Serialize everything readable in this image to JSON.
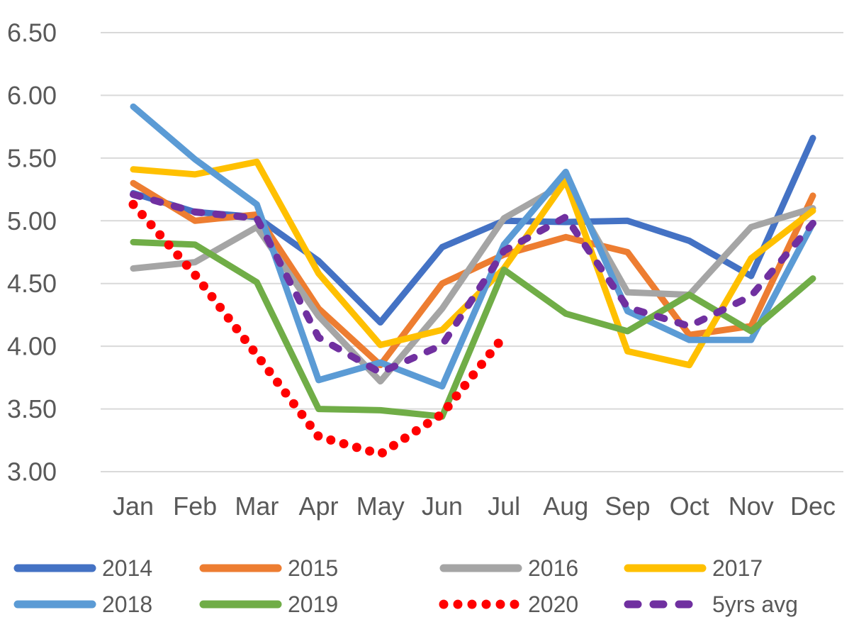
{
  "colors": {
    "background": "#FFFFFF",
    "gridline": "#D9D9D9",
    "axis_text": "#595959"
  },
  "chart_data": {
    "type": "line",
    "title": "",
    "xlabel": "",
    "ylabel": "",
    "categories": [
      "Jan",
      "Feb",
      "Mar",
      "Apr",
      "May",
      "Jun",
      "Jul",
      "Aug",
      "Sep",
      "Oct",
      "Nov",
      "Dec"
    ],
    "y_ticks": [
      "6.50",
      "6.00",
      "5.50",
      "5.00",
      "4.50",
      "4.00",
      "3.50",
      "3.00"
    ],
    "ylim": [
      3.0,
      6.5
    ],
    "grid": "horizontal",
    "legend_position": "bottom",
    "legend_rows": 2,
    "legend_columns": 4,
    "series": [
      {
        "name": "2014",
        "color": "#4472C4",
        "style": "solid",
        "values": [
          5.22,
          5.07,
          5.03,
          4.68,
          4.19,
          4.79,
          5.0,
          4.99,
          5.0,
          4.84,
          4.56,
          5.66
        ]
      },
      {
        "name": "2015",
        "color": "#ED7D31",
        "style": "solid",
        "values": [
          5.3,
          5.0,
          5.05,
          4.3,
          3.85,
          4.5,
          4.73,
          4.87,
          4.75,
          4.09,
          4.16,
          5.2
        ]
      },
      {
        "name": "2016",
        "color": "#A5A5A5",
        "style": "solid",
        "values": [
          4.62,
          4.67,
          4.95,
          4.24,
          3.72,
          4.3,
          5.02,
          5.3,
          4.43,
          4.41,
          4.95,
          5.1
        ]
      },
      {
        "name": "2017",
        "color": "#FFC000",
        "style": "solid",
        "values": [
          5.41,
          5.37,
          5.47,
          4.58,
          4.01,
          4.13,
          4.62,
          5.32,
          3.96,
          3.85,
          4.7,
          5.08
        ]
      },
      {
        "name": "2018",
        "color": "#5B9BD5",
        "style": "solid",
        "values": [
          5.91,
          5.49,
          5.13,
          3.73,
          3.87,
          3.68,
          4.81,
          5.39,
          4.28,
          4.05,
          4.05,
          4.98
        ]
      },
      {
        "name": "2019",
        "color": "#70AD47",
        "style": "solid",
        "values": [
          4.83,
          4.81,
          4.51,
          3.5,
          3.49,
          3.44,
          4.61,
          4.26,
          4.12,
          4.41,
          4.12,
          4.54
        ]
      },
      {
        "name": "2020",
        "color": "#FF0000",
        "style": "dotted",
        "values": [
          5.13,
          4.57,
          3.93,
          3.28,
          3.14,
          3.46,
          4.08
        ]
      },
      {
        "name": "5yrs avg",
        "color": "#7030A0",
        "style": "dashed",
        "values": [
          5.21,
          5.07,
          5.02,
          4.07,
          3.79,
          4.01,
          4.76,
          5.03,
          4.31,
          4.16,
          4.4,
          4.98
        ]
      }
    ]
  }
}
